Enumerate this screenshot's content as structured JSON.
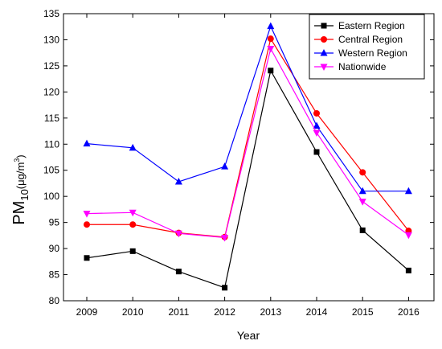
{
  "chart_data": {
    "type": "line",
    "xlabel": "Year",
    "ylabel": {
      "main": "PM",
      "sub": "10",
      "unit_open": "(μg/m",
      "sup": "3",
      "unit_close": ")"
    },
    "x": [
      "2009",
      "2010",
      "2011",
      "2012",
      "2013",
      "2014",
      "2015",
      "2016"
    ],
    "ylim": [
      80,
      135
    ],
    "yticks": [
      80,
      85,
      90,
      95,
      100,
      105,
      110,
      115,
      120,
      125,
      130,
      135
    ],
    "grid": false,
    "legend_position": "top-right",
    "series": [
      {
        "name": "Eastern Region",
        "color": "#000000",
        "marker": "square",
        "values": [
          88.2,
          89.5,
          85.6,
          82.5,
          124.1,
          108.5,
          93.5,
          85.8
        ]
      },
      {
        "name": "Central Region",
        "color": "#ff0000",
        "marker": "circle",
        "values": [
          94.6,
          94.6,
          93.0,
          92.2,
          130.2,
          115.9,
          104.6,
          93.4
        ]
      },
      {
        "name": "Western Region",
        "color": "#0000ff",
        "marker": "triangle-up",
        "values": [
          110.1,
          109.3,
          102.8,
          105.7,
          132.6,
          113.5,
          101.0,
          101.0
        ]
      },
      {
        "name": "Nationwide",
        "color": "#ff00ff",
        "marker": "triangle-down",
        "values": [
          96.7,
          96.9,
          92.9,
          92.1,
          128.3,
          112.2,
          99.0,
          92.6
        ]
      }
    ]
  }
}
